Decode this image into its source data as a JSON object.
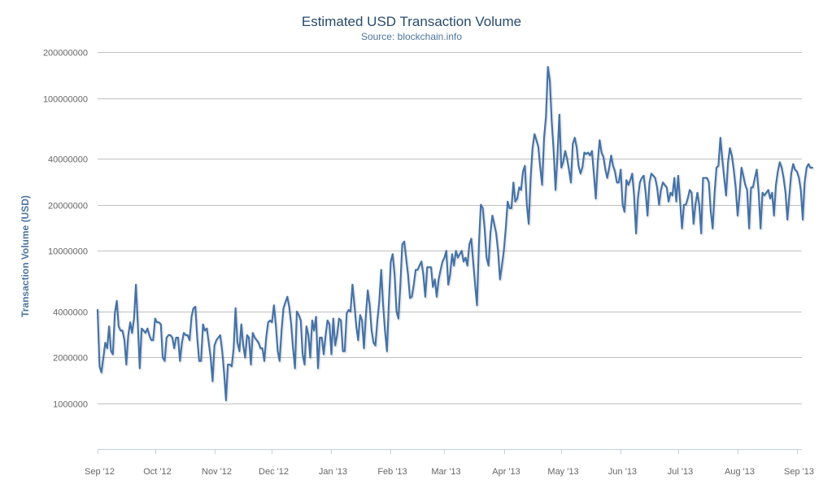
{
  "chart_data": {
    "type": "line",
    "title": "Estimated USD Transaction Volume",
    "subtitle": "Source: blockchain.info",
    "xlabel": "",
    "ylabel": "Transaction Volume (USD)",
    "yscale": "log",
    "ylim": [
      1000000,
      200000000
    ],
    "yticks": [
      "1000000",
      "2000000",
      "4000000",
      "10000000",
      "20000000",
      "40000000",
      "100000000",
      "200000000"
    ],
    "xticks": [
      "Sep '12",
      "Oct '12",
      "Nov '12",
      "Dec '12",
      "Jan '13",
      "Feb '13",
      "Mar '13",
      "Apr '13",
      "May '13",
      "Jun '13",
      "Jul '13",
      "Aug '13",
      "Sep '13"
    ],
    "xrange": [
      "2012-09-01",
      "2013-09-01"
    ],
    "grid": true,
    "legend": "none",
    "colors": {
      "line": "#4572a7",
      "grid": "#c0c0c0",
      "axis": "#c0d0e0",
      "title": "#274b6d",
      "subtitle": "#4d759e",
      "label": "#4d759e",
      "tick": "#666666"
    },
    "series": [
      {
        "x_start": "2012-09-01",
        "x_step_days": 1,
        "values": [
          4100000,
          1750000,
          1600000,
          2000000,
          2500000,
          2300000,
          3200000,
          2200000,
          2100000,
          3900000,
          4700000,
          3200000,
          3000000,
          3000000,
          2600000,
          1800000,
          2800000,
          3400000,
          2900000,
          3600000,
          6000000,
          3300000,
          1700000,
          3100000,
          3000000,
          2900000,
          3100000,
          2800000,
          2600000,
          2600000,
          3600000,
          3400000,
          3400000,
          3300000,
          2000000,
          1900000,
          2700000,
          2800000,
          2800000,
          2700000,
          2300000,
          2700000,
          2700000,
          1900000,
          2500000,
          2900000,
          2800000,
          2800000,
          2600000,
          3700000,
          4200000,
          4300000,
          2700000,
          1900000,
          1900000,
          3300000,
          3000000,
          3100000,
          2500000,
          2000000,
          1400000,
          2400000,
          2600000,
          2700000,
          2800000,
          2200000,
          1600000,
          1050000,
          1800000,
          1800000,
          1750000,
          2300000,
          4200000,
          2500000,
          2200000,
          3300000,
          2400000,
          2000000,
          2800000,
          2700000,
          1800000,
          2900000,
          2700000,
          2600000,
          2500000,
          2300000,
          2300000,
          1900000,
          2700000,
          3400000,
          3500000,
          3400000,
          4400000,
          3300000,
          2200000,
          1900000,
          3000000,
          4200000,
          4600000,
          5000000,
          4300000,
          3300000,
          2300000,
          1700000,
          4000000,
          3800000,
          3500000,
          2100000,
          1800000,
          3200000,
          2800000,
          2000000,
          3500000,
          3000000,
          3700000,
          1700000,
          2700000,
          2700000,
          2100000,
          2800000,
          3500000,
          3300000,
          2100000,
          3600000,
          2400000,
          2800000,
          3600000,
          3500000,
          2200000,
          2200000,
          3900000,
          4100000,
          4000000,
          6000000,
          4500000,
          3200000,
          2600000,
          3800000,
          3500000,
          2300000,
          3800000,
          5500000,
          4400000,
          3000000,
          2500000,
          2400000,
          3500000,
          4700000,
          7500000,
          4400000,
          3000000,
          2200000,
          4500000,
          8500000,
          9500000,
          7000000,
          4000000,
          3600000,
          6000000,
          11000000,
          11500000,
          9000000,
          7000000,
          4900000,
          5000000,
          6000000,
          7500000,
          7500000,
          8000000,
          8500000,
          7000000,
          5000000,
          7800000,
          7800000,
          7800000,
          5800000,
          6500000,
          5000000,
          6500000,
          7500000,
          8500000,
          9000000,
          10000000,
          6000000,
          7000000,
          9500000,
          8000000,
          10000000,
          9000000,
          9500000,
          10000000,
          8500000,
          9000000,
          8000000,
          11000000,
          12000000,
          8500000,
          6000000,
          4400000,
          11000000,
          20000000,
          19000000,
          14000000,
          9000000,
          8000000,
          13000000,
          17000000,
          15000000,
          13000000,
          10000000,
          6500000,
          8000000,
          10000000,
          14000000,
          21000000,
          19000000,
          19000000,
          28000000,
          21000000,
          22000000,
          26000000,
          25000000,
          33000000,
          36000000,
          20000000,
          15000000,
          30000000,
          47000000,
          58000000,
          53000000,
          48000000,
          35000000,
          27000000,
          55000000,
          75000000,
          160000000,
          130000000,
          70000000,
          45000000,
          25000000,
          42000000,
          78000000,
          35000000,
          38000000,
          45000000,
          40000000,
          34000000,
          28000000,
          50000000,
          55000000,
          48000000,
          36000000,
          32000000,
          35000000,
          44000000,
          43000000,
          44000000,
          42000000,
          45000000,
          32000000,
          22000000,
          38000000,
          53000000,
          44000000,
          41000000,
          34000000,
          30000000,
          35000000,
          42000000,
          36000000,
          33000000,
          28000000,
          28000000,
          34000000,
          20000000,
          18000000,
          29000000,
          27000000,
          29000000,
          32000000,
          23000000,
          13000000,
          22000000,
          28000000,
          30000000,
          31000000,
          24000000,
          17000000,
          28000000,
          32000000,
          31000000,
          30000000,
          26000000,
          20000000,
          25000000,
          28000000,
          27000000,
          26000000,
          21000000,
          24000000,
          23000000,
          30000000,
          21000000,
          31000000,
          21000000,
          14000000,
          20000000,
          20000000,
          22000000,
          25000000,
          24000000,
          15000000,
          20000000,
          24000000,
          20000000,
          13000000,
          30000000,
          30000000,
          30000000,
          28000000,
          18000000,
          14000000,
          24000000,
          35000000,
          36000000,
          55000000,
          40000000,
          30000000,
          23000000,
          38000000,
          47000000,
          42000000,
          34000000,
          26000000,
          17000000,
          23000000,
          35000000,
          31000000,
          27000000,
          25000000,
          14000000,
          26000000,
          26000000,
          30000000,
          34000000,
          24000000,
          14000000,
          24000000,
          23000000,
          24000000,
          25000000,
          22000000,
          24000000,
          17000000,
          27000000,
          33000000,
          38000000,
          35000000,
          30000000,
          24000000,
          16000000,
          23000000,
          32000000,
          37000000,
          34000000,
          33000000,
          30000000,
          25000000,
          16000000,
          28000000,
          35000000,
          37000000,
          35000000,
          35000000
        ]
      }
    ]
  }
}
